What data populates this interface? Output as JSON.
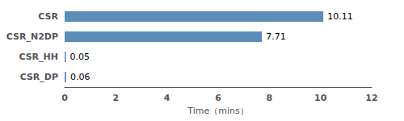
{
  "chart_data": {
    "type": "bar",
    "orientation": "horizontal",
    "categories": [
      "CSR_DP",
      "CSR_HH",
      "CSR_N2DP",
      "CSR"
    ],
    "values": [
      0.06,
      0.05,
      7.71,
      10.11
    ],
    "color": "#5B8DB8",
    "xlim": [
      0,
      12
    ],
    "xticks": [
      0,
      2,
      4,
      6,
      8,
      10,
      12
    ],
    "xlabel": "Time（mins）",
    "data_labels": true,
    "grid": false
  }
}
